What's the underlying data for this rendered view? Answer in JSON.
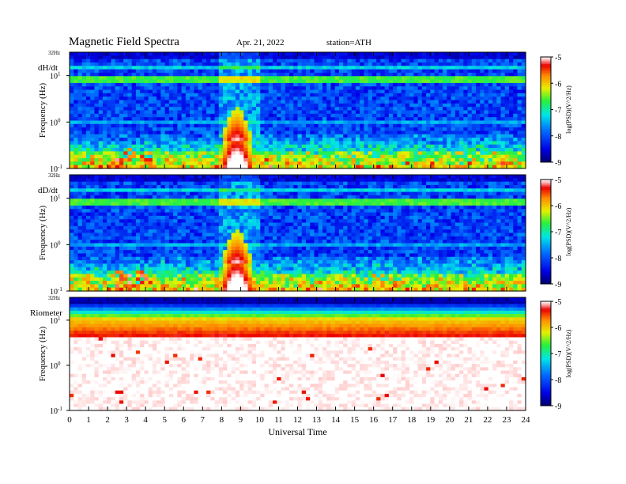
{
  "header": {
    "title": "Magnetic  Field  Spectra",
    "date": "Apr. 21, 2022",
    "station": "station=ATH"
  },
  "chart_data": [
    {
      "type": "heatmap",
      "panel_label": "dH/dt",
      "ylabel": "Frequency (Hz)",
      "y_scale": "log",
      "ylim_hz": [
        0.1,
        32
      ],
      "y_top_label": "32Hz",
      "y_tick_labels": [
        "10^1",
        "10^0",
        "10^-1"
      ],
      "colorbar": {
        "label": "log(PSD)(V^2/Hz)",
        "range": [
          -9,
          -5
        ],
        "ticks": [
          "-5",
          "-6",
          "-7",
          "-8",
          "-9"
        ]
      }
    },
    {
      "type": "heatmap",
      "panel_label": "dD/dt",
      "ylabel": "Frequency (Hz)",
      "y_scale": "log",
      "ylim_hz": [
        0.1,
        32
      ],
      "y_top_label": "32Hz",
      "y_tick_labels": [
        "10^1",
        "10^0",
        "10^-1"
      ],
      "colorbar": {
        "label": "log(PSD)(V^2/Hz)",
        "range": [
          -9,
          -5
        ],
        "ticks": [
          "-5",
          "-6",
          "-7",
          "-8",
          "-9"
        ]
      }
    },
    {
      "type": "heatmap",
      "panel_label": "Riometer",
      "ylabel": "Frequency (Hz)",
      "y_scale": "log",
      "ylim_hz": [
        0.1,
        32
      ],
      "y_top_label": "32Hz",
      "y_tick_labels": [
        "10^1",
        "10^0",
        "10^-1"
      ],
      "colorbar": {
        "label": "log(PSD)(V^2/Hz)",
        "range": [
          -9,
          -5
        ],
        "ticks": [
          "-5",
          "-6",
          "-7",
          "-8",
          "-9"
        ]
      }
    }
  ],
  "x_axis": {
    "label": "Universal Time",
    "xlim": [
      0,
      24
    ],
    "ticks": [
      "0",
      "1",
      "2",
      "3",
      "4",
      "5",
      "6",
      "7",
      "8",
      "9",
      "10",
      "11",
      "12",
      "13",
      "14",
      "15",
      "16",
      "17",
      "18",
      "19",
      "20",
      "21",
      "22",
      "23",
      "24"
    ]
  }
}
